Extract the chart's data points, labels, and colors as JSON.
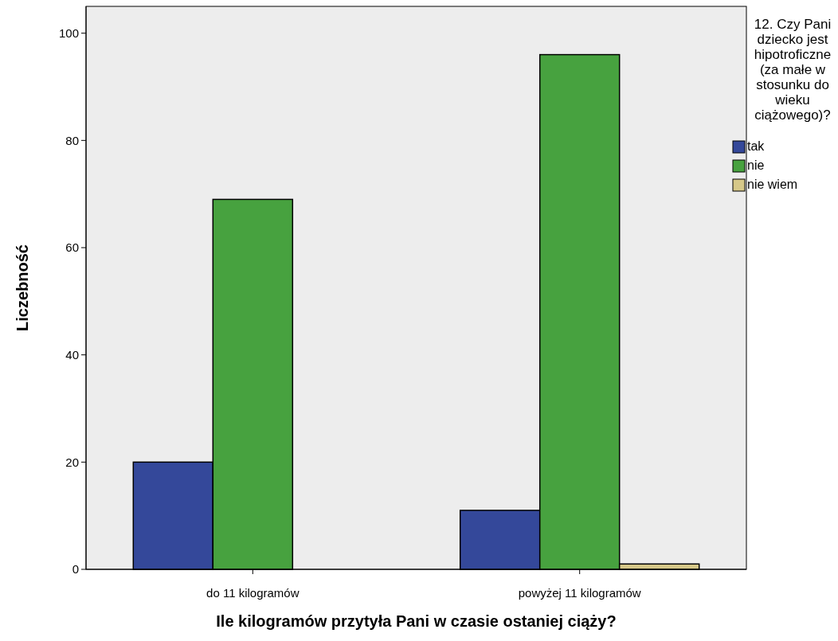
{
  "chart_data": {
    "type": "bar",
    "xlabel": "Ile kilogramów przytyła Pani w czasie ostaniej ciąży?",
    "ylabel": "Liczebność",
    "legend_title": "12. Czy Pani dziecko jest hipotroficzne (za małe w stosunku do wieku ciążowego)?",
    "categories": [
      "do 11 kilogramów",
      "powyżej 11 kilogramów"
    ],
    "series": [
      {
        "name": "tak",
        "color": "#34489a",
        "values": [
          20,
          11
        ]
      },
      {
        "name": "nie",
        "color": "#47a23f",
        "values": [
          69,
          96
        ]
      },
      {
        "name": "nie wiem",
        "color": "#d6c889",
        "values": [
          null,
          1
        ]
      }
    ],
    "ylim": [
      0,
      105
    ],
    "yticks": [
      0,
      20,
      40,
      60,
      80,
      100
    ],
    "grid": false,
    "legend": "right"
  }
}
